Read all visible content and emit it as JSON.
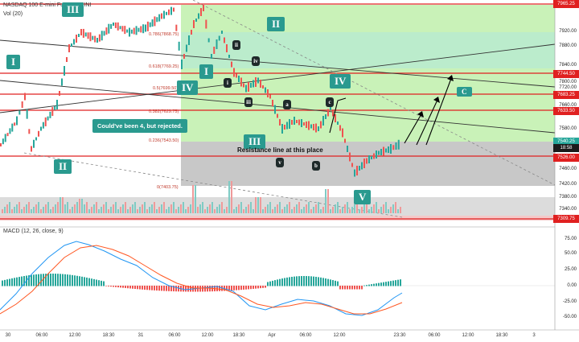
{
  "header": {
    "symbol": "NASDAQ 100 E-mini Futures",
    "exchange": "MINI",
    "volume_label": "Vol (20)",
    "macd_label": "MACD (12, 26, close, 9)"
  },
  "price_axis": [
    "7965.25",
    "7920.00",
    "7880.00",
    "7840.00",
    "7800.00",
    "7744.50",
    "7720.00",
    "7683.25",
    "7660.00",
    "7633.50",
    "7580.00",
    "7540.25",
    "18:58",
    "7526.00",
    "7460.00",
    "7420.00",
    "7380.00",
    "7340.00",
    "7309.75"
  ],
  "macd_axis": [
    "75.00",
    "50.00",
    "25.00",
    "0.00",
    "-25.00",
    "-50.00"
  ],
  "time_axis": [
    "30",
    "06:00",
    "12:00",
    "18:30",
    "31",
    "06:00",
    "12:00",
    "18:30",
    "Apr",
    "06:00",
    "12:00",
    "23:30",
    "06:00",
    "12:00",
    "18:30",
    "3"
  ],
  "fib_levels": [
    "0.786(7868.75)",
    "0.618(7769.25)",
    "0.5(7699.50)",
    "0.382(7629.75)",
    "0.236(7543.50)",
    "0(7403.75)"
  ],
  "waves_big": [
    "I",
    "II",
    "III",
    "IV",
    "I",
    "II",
    "III",
    "IV",
    "V",
    "C"
  ],
  "waves_small": [
    "ii",
    "i",
    "iii",
    "iv",
    "a",
    "v",
    "c",
    "b"
  ],
  "annotations": {
    "rejected_note": "Could've been 4, but rejected.",
    "resistance": "Resistance line at this place"
  },
  "colors": {
    "accent": "#2a9a8f",
    "red_line": "#e02020",
    "green_zone": "#c7f0b0",
    "gray_zone": "#bfbfbf",
    "candle_up": "#26a69a",
    "candle_down": "#ef5350"
  }
}
